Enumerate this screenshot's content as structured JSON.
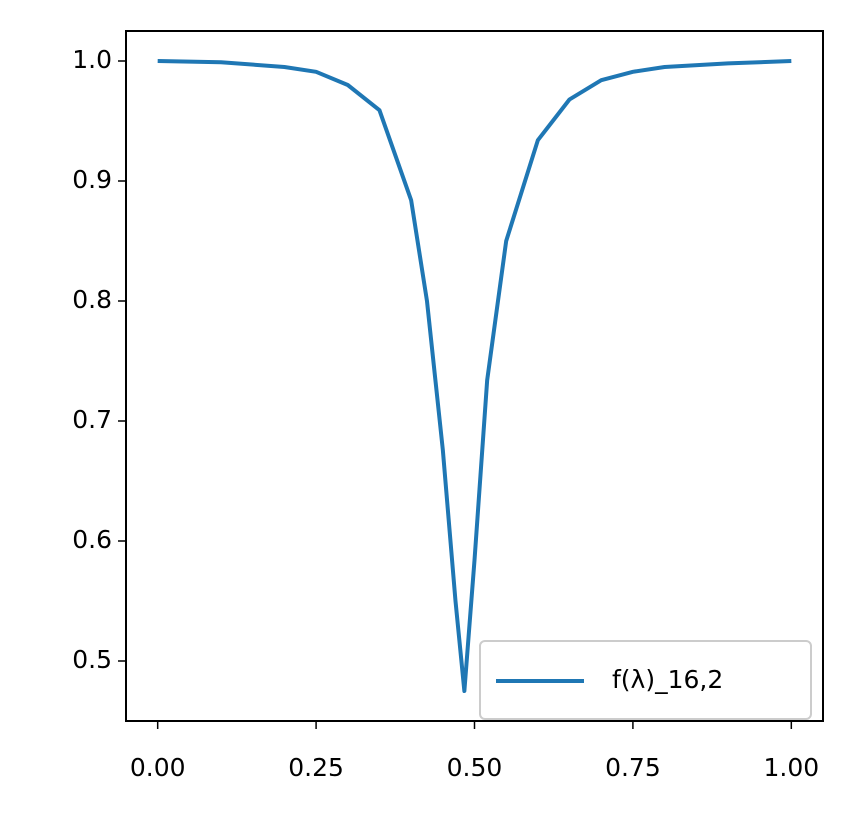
{
  "chart_data": {
    "type": "line",
    "x": [
      0,
      0.1,
      0.2,
      0.25,
      0.3,
      0.35,
      0.4,
      0.425,
      0.45,
      0.47,
      0.484,
      0.5,
      0.52,
      0.55,
      0.6,
      0.65,
      0.7,
      0.75,
      0.8,
      0.9,
      1.0
    ],
    "series": [
      {
        "name": "f(λ)_16,2",
        "color": "#1f77b4",
        "values": [
          1.0,
          0.999,
          0.995,
          0.991,
          0.98,
          0.959,
          0.884,
          0.8,
          0.676,
          0.55,
          0.475,
          0.584,
          0.734,
          0.85,
          0.934,
          0.968,
          0.984,
          0.991,
          0.995,
          0.998,
          1.0
        ]
      }
    ],
    "xlim": [
      -0.05,
      1.05
    ],
    "ylim": [
      0.45,
      1.025
    ],
    "xticks": [
      {
        "value": 0,
        "label": "0.00"
      },
      {
        "value": 0.25,
        "label": "0.25"
      },
      {
        "value": 0.5,
        "label": "0.50"
      },
      {
        "value": 0.75,
        "label": "0.75"
      },
      {
        "value": 1,
        "label": "1.00"
      }
    ],
    "yticks": [
      0.5,
      0.6,
      0.7,
      0.8,
      0.9,
      {
        "value": 1.0,
        "label": "1.0"
      }
    ],
    "grid": false,
    "legend": "lower right"
  }
}
